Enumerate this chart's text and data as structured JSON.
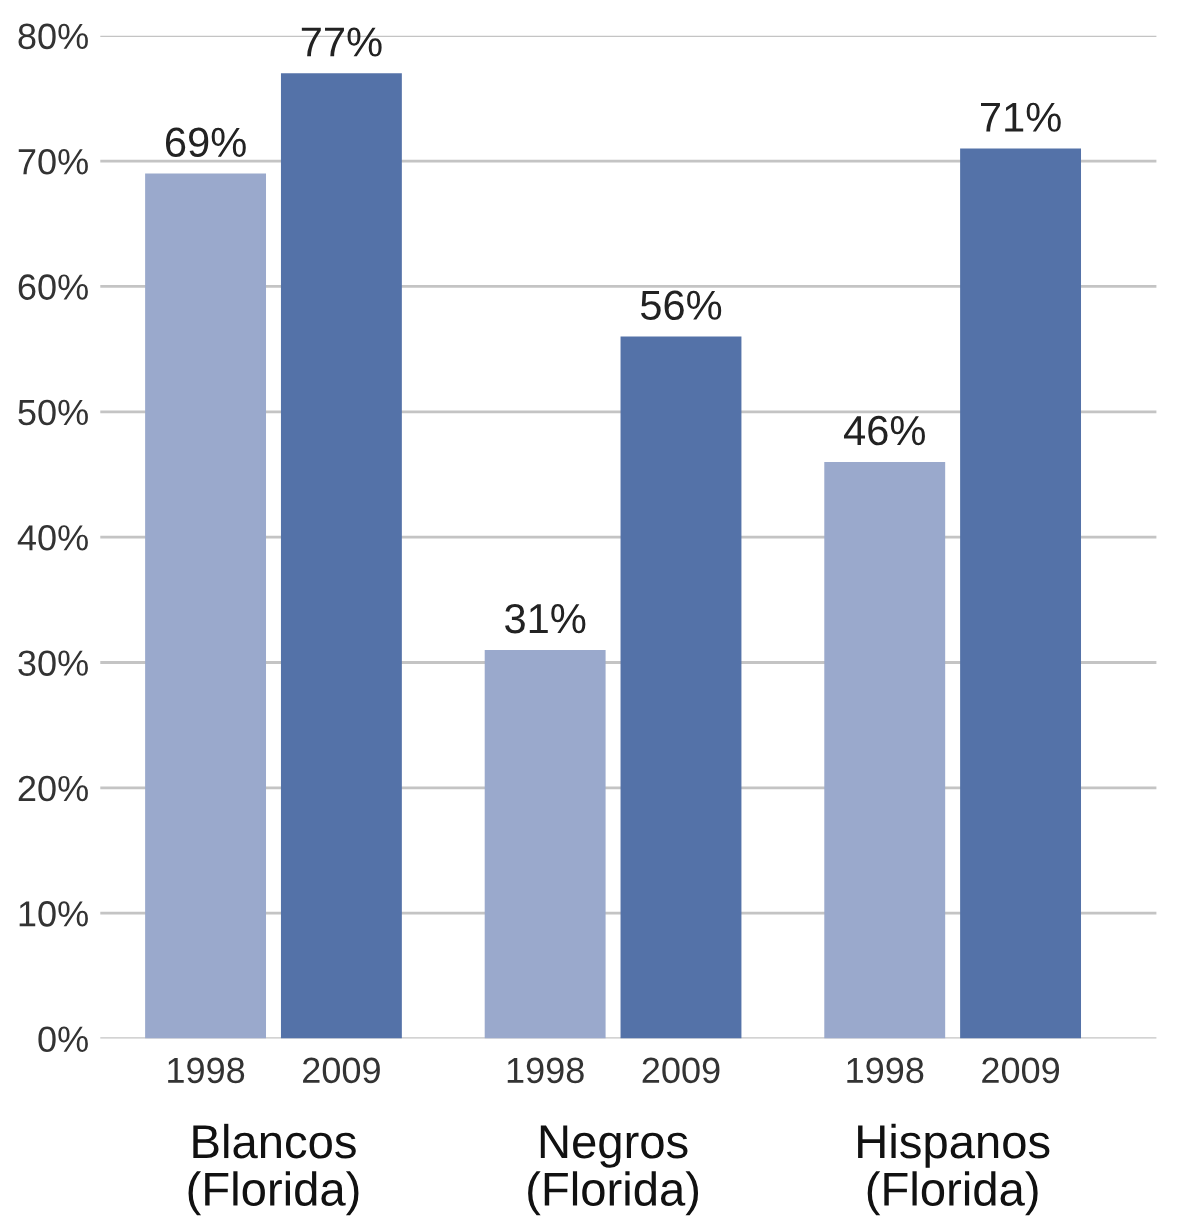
{
  "chart_data": {
    "type": "bar",
    "categories": [
      "Blancos\n(Florida)",
      "Negros\n(Florida)",
      "Hispanos\n(Florida)"
    ],
    "series": [
      {
        "name": "1998",
        "color": "#9aa9cc",
        "values": [
          69,
          31,
          46
        ],
        "value_labels": [
          "69%",
          "31%",
          "46%"
        ]
      },
      {
        "name": "2009",
        "color": "#5472a8",
        "values": [
          77,
          56,
          71
        ],
        "value_labels": [
          "77%",
          "56%",
          "71%"
        ]
      }
    ],
    "ylim": [
      0,
      80
    ],
    "yticks": [
      {
        "value": 0,
        "label": "0%"
      },
      {
        "value": 10,
        "label": "10%"
      },
      {
        "value": 20,
        "label": "20%"
      },
      {
        "value": 30,
        "label": "30%"
      },
      {
        "value": 40,
        "label": "40%"
      },
      {
        "value": 50,
        "label": "50%"
      },
      {
        "value": 60,
        "label": "60%"
      },
      {
        "value": 70,
        "label": "70%"
      },
      {
        "value": 80,
        "label": "80%"
      }
    ],
    "grid": "y",
    "legend": false
  }
}
